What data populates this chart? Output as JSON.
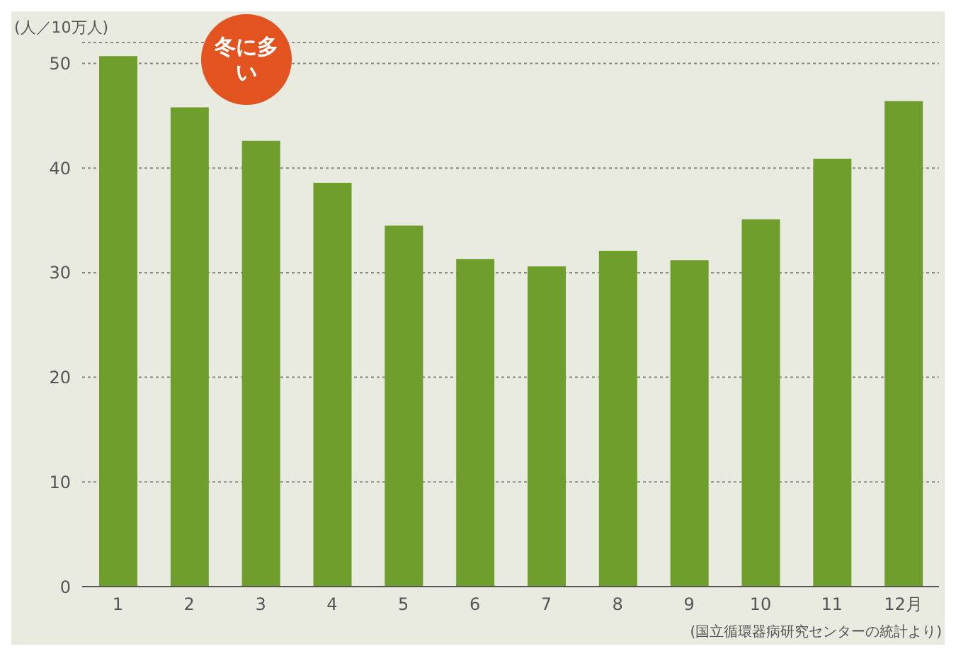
{
  "chart_data": {
    "type": "bar",
    "ylabel": "(人／10万人)",
    "categories": [
      "1",
      "2",
      "3",
      "4",
      "5",
      "6",
      "7",
      "8",
      "9",
      "10",
      "11",
      "12月"
    ],
    "values": [
      50.7,
      45.8,
      42.6,
      38.6,
      34.5,
      31.3,
      30.6,
      32.1,
      31.2,
      35.1,
      40.9,
      46.4
    ],
    "color": "#6f9e2c",
    "ylim": [
      0,
      52
    ],
    "yticks": [
      0,
      10,
      20,
      30,
      40,
      50
    ],
    "grid": "y",
    "legend": false,
    "annotations": [
      "冬に多い",
      "(国立循環器病研究センターの統計より)"
    ]
  }
}
